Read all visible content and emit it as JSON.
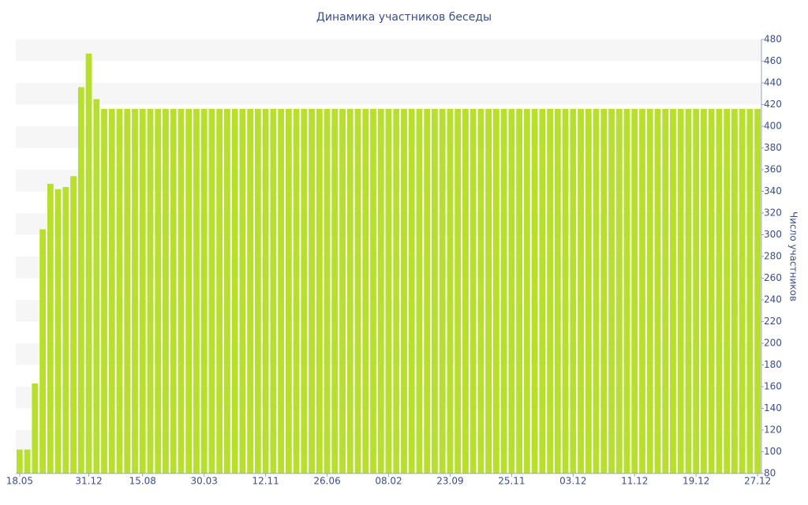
{
  "chart_data": {
    "type": "bar",
    "title": "Динамика участников беседы",
    "y_axis_label": "Число участников",
    "y_axis_side": "right",
    "categories": [
      "18.05",
      null,
      null,
      null,
      null,
      null,
      null,
      null,
      null,
      "31.12",
      null,
      null,
      null,
      null,
      null,
      null,
      "15.08",
      null,
      null,
      null,
      null,
      null,
      null,
      null,
      "30.03",
      null,
      null,
      null,
      null,
      null,
      null,
      null,
      "12.11",
      null,
      null,
      null,
      null,
      null,
      null,
      null,
      "26.06",
      null,
      null,
      null,
      null,
      null,
      null,
      null,
      "08.02",
      null,
      null,
      null,
      null,
      null,
      null,
      null,
      "23.09",
      null,
      null,
      null,
      null,
      null,
      null,
      null,
      "25.11",
      null,
      null,
      null,
      null,
      null,
      null,
      null,
      "03.12",
      null,
      null,
      null,
      null,
      null,
      null,
      null,
      "11.12",
      null,
      null,
      null,
      null,
      null,
      null,
      null,
      "19.12",
      null,
      null,
      null,
      null,
      null,
      null,
      null,
      "27.12"
    ],
    "values": [
      102,
      102,
      163,
      305,
      347,
      342,
      344,
      354,
      436,
      467,
      425,
      416,
      416,
      416,
      416,
      416,
      416,
      416,
      416,
      416,
      416,
      416,
      416,
      416,
      416,
      416,
      416,
      416,
      416,
      416,
      416,
      416,
      416,
      416,
      416,
      416,
      416,
      416,
      416,
      416,
      416,
      416,
      416,
      416,
      416,
      416,
      416,
      416,
      416,
      416,
      416,
      416,
      416,
      416,
      416,
      416,
      416,
      416,
      416,
      416,
      416,
      416,
      416,
      416,
      416,
      416,
      416,
      416,
      416,
      416,
      416,
      416,
      416,
      416,
      416,
      416,
      416,
      416,
      416,
      416,
      416,
      416,
      416,
      416,
      416,
      416,
      416,
      416,
      416,
      416,
      416,
      416,
      416,
      416,
      416,
      416,
      416
    ],
    "color": "#b8df2e",
    "ylim": [
      80,
      480
    ],
    "yticks": [
      80,
      100,
      120,
      140,
      160,
      180,
      200,
      220,
      240,
      260,
      280,
      300,
      320,
      340,
      360,
      380,
      400,
      420,
      440,
      460,
      480
    ],
    "grid": true
  }
}
